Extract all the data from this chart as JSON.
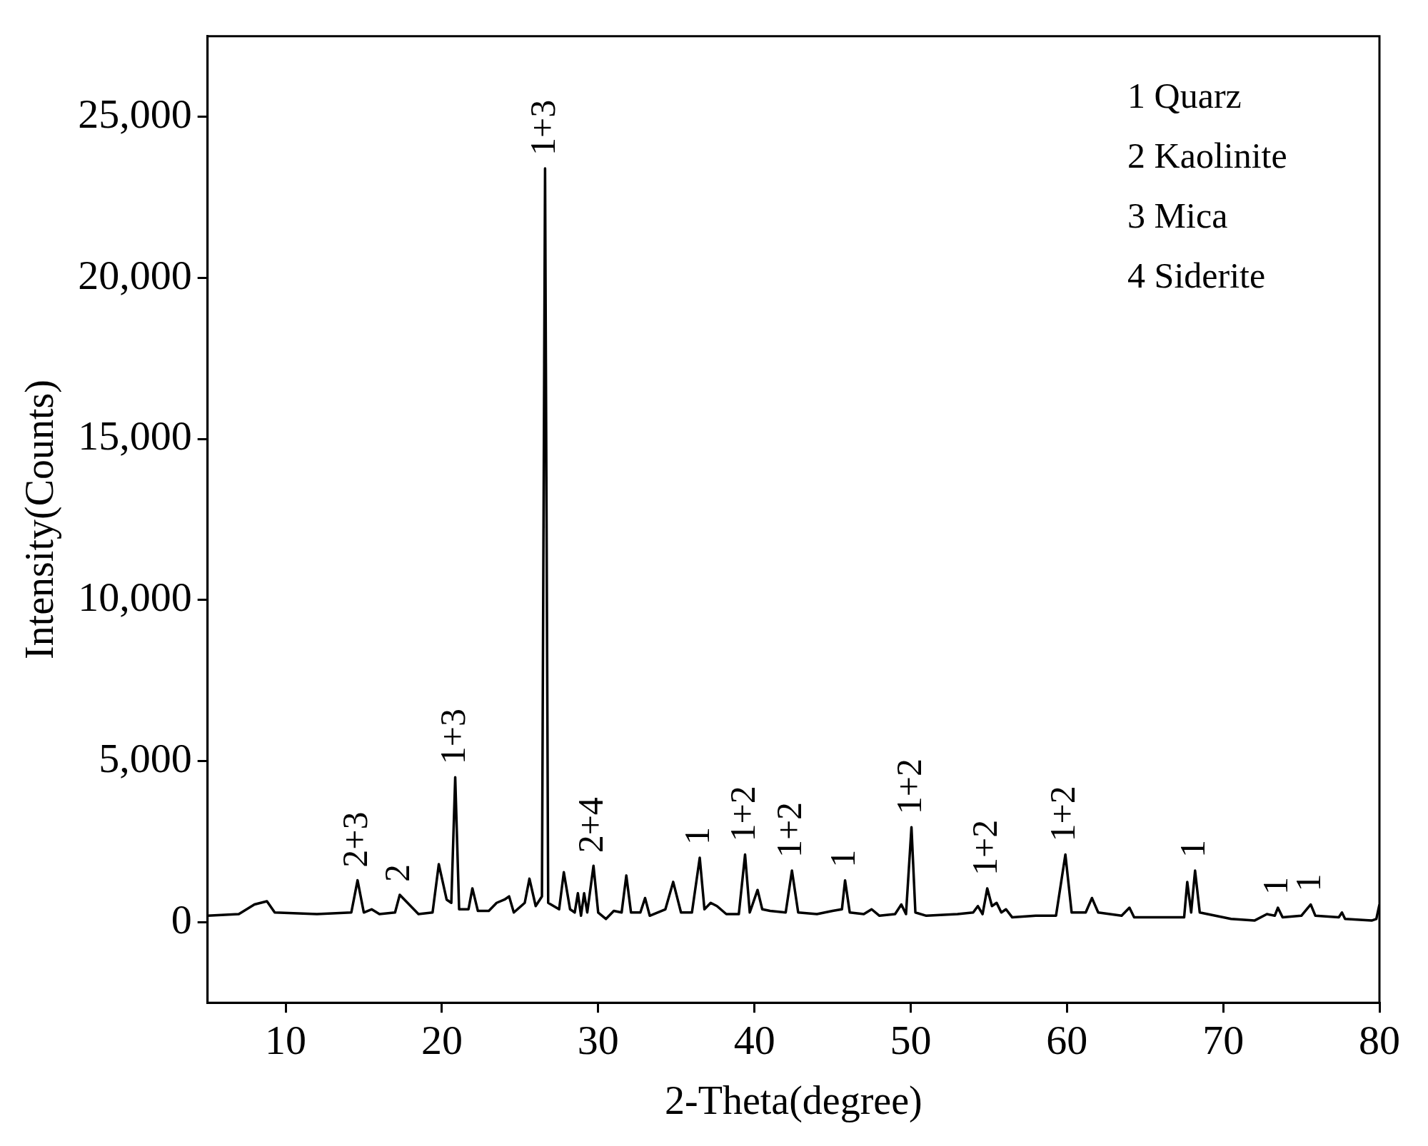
{
  "chart_data": {
    "type": "line",
    "xlabel": "2-Theta(degree)",
    "ylabel": "Intensity(Counts)",
    "xlim": [
      5,
      80
    ],
    "xticks": [
      10,
      20,
      30,
      40,
      50,
      60,
      70,
      80
    ],
    "ylim": [
      -2500,
      27500
    ],
    "yticks": [
      {
        "value": 0,
        "label": "0"
      },
      {
        "value": 5000,
        "label": "5,000"
      },
      {
        "value": 10000,
        "label": "10,000"
      },
      {
        "value": 15000,
        "label": "15,000"
      },
      {
        "value": 20000,
        "label": "20,000"
      },
      {
        "value": 25000,
        "label": "25,000"
      }
    ],
    "grid": false,
    "legend": false,
    "marker": "none",
    "line_style": "solid",
    "series": [
      {
        "color": "#000000",
        "x": [
          5,
          7,
          8,
          8.8,
          9.3,
          12,
          14.2,
          14.6,
          15,
          15.5,
          16,
          17,
          17.3,
          17.8,
          18.5,
          19.4,
          19.8,
          20.3,
          20.6,
          20.85,
          21.1,
          21.7,
          21.95,
          22.3,
          23,
          23.5,
          24,
          24.3,
          24.6,
          25.3,
          25.6,
          26,
          26.4,
          26.6,
          26.8,
          27.5,
          27.8,
          28.2,
          28.5,
          28.7,
          28.9,
          29.1,
          29.3,
          29.7,
          30,
          30.5,
          31,
          31.5,
          31.8,
          32.1,
          32.7,
          33,
          33.3,
          34.3,
          34.8,
          35.3,
          36,
          36.5,
          36.8,
          37.2,
          37.6,
          38.2,
          39,
          39.4,
          39.7,
          40.2,
          40.5,
          41,
          42,
          42.4,
          42.8,
          44,
          45,
          45.6,
          45.8,
          46.1,
          47,
          47.5,
          48,
          49,
          49.4,
          49.7,
          50.05,
          50.3,
          51,
          53,
          54,
          54.3,
          54.6,
          54.9,
          55.2,
          55.5,
          55.8,
          56.1,
          56.5,
          58,
          59.3,
          59.9,
          60.3,
          61.2,
          61.6,
          62,
          63.5,
          64,
          64.3,
          66,
          67.5,
          67.7,
          67.95,
          68.2,
          68.5,
          69.5,
          70.5,
          72,
          72.8,
          73.3,
          73.5,
          73.8,
          75,
          75.6,
          75.9,
          77.4,
          77.6,
          77.8,
          79.5,
          79.8,
          80
        ],
        "values": [
          200,
          250,
          550,
          650,
          300,
          250,
          300,
          1300,
          300,
          400,
          250,
          300,
          850,
          600,
          250,
          300,
          1800,
          700,
          600,
          4500,
          400,
          400,
          1050,
          350,
          350,
          600,
          700,
          800,
          300,
          600,
          1350,
          500,
          800,
          23400,
          600,
          400,
          1550,
          400,
          300,
          900,
          200,
          900,
          300,
          1750,
          300,
          100,
          350,
          300,
          1450,
          300,
          300,
          750,
          200,
          400,
          1250,
          300,
          300,
          2000,
          400,
          600,
          500,
          250,
          250,
          2100,
          300,
          1000,
          400,
          350,
          300,
          1600,
          300,
          250,
          350,
          400,
          1300,
          300,
          250,
          400,
          200,
          250,
          550,
          250,
          2950,
          300,
          200,
          250,
          300,
          500,
          250,
          1050,
          500,
          600,
          300,
          400,
          150,
          200,
          200,
          2100,
          300,
          300,
          750,
          300,
          200,
          450,
          150,
          150,
          150,
          1250,
          300,
          1600,
          300,
          200,
          100,
          50,
          250,
          200,
          450,
          150,
          200,
          550,
          200,
          150,
          300,
          100,
          50,
          100,
          550
        ]
      }
    ],
    "annotations": [
      "1 Quarz",
      "2 Kaolinite",
      "3 Mica",
      "4 Siderite",
      {
        "text": "2+3",
        "x": 14.6,
        "y": 1300
      },
      {
        "text": "2",
        "x": 17.3,
        "y": 850
      },
      {
        "text": "1+3",
        "x": 20.85,
        "y": 4500
      },
      {
        "text": "1+3",
        "x": 26.6,
        "y": 23400
      },
      {
        "text": "2+4",
        "x": 29.7,
        "y": 1750
      },
      {
        "text": "1",
        "x": 36.5,
        "y": 2000
      },
      {
        "text": "1+2",
        "x": 39.4,
        "y": 2100
      },
      {
        "text": "1+2",
        "x": 42.4,
        "y": 1600
      },
      {
        "text": "1",
        "x": 45.8,
        "y": 1300
      },
      {
        "text": "1+2",
        "x": 50.05,
        "y": 2950
      },
      {
        "text": "1+2",
        "x": 54.9,
        "y": 1050
      },
      {
        "text": "1+2",
        "x": 59.9,
        "y": 2100
      },
      {
        "text": "1",
        "x": 68.2,
        "y": 1600
      },
      {
        "text": "1",
        "x": 73.5,
        "y": 450
      },
      {
        "text": "1",
        "x": 75.6,
        "y": 550
      }
    ]
  }
}
